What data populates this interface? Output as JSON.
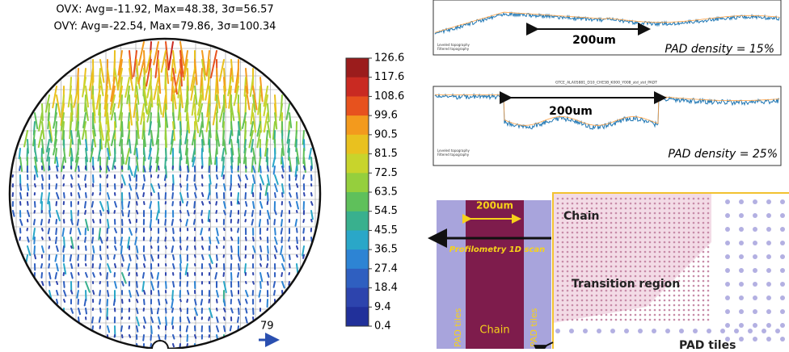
{
  "wafer_map": {
    "header": [
      "OVX: Avg=-11.92, Max=48.38, 3σ=56.57",
      "OVY: Avg=-22.54, Max=79.86, 3σ=100.34"
    ],
    "colorbar": {
      "ticks": [
        "126.6",
        "117.6",
        "108.6",
        "99.6",
        "90.5",
        "81.5",
        "72.5",
        "63.5",
        "54.5",
        "45.5",
        "36.5",
        "27.4",
        "18.4",
        "9.4",
        "0.4"
      ],
      "colors": [
        "#9b1c1c",
        "#c92a22",
        "#e7521e",
        "#f39a1d",
        "#e9c11f",
        "#c8d42c",
        "#95cf3d",
        "#5fc05b",
        "#39b08e",
        "#2aa7c8",
        "#2d84d4",
        "#2f5fc0",
        "#2d44ad",
        "#21309a"
      ]
    },
    "scale_label": "79"
  },
  "profile_1": {
    "legend": [
      "Leveled topography",
      "Filtered topography"
    ],
    "span_label": "200um",
    "density_label": "PAD density = 15%"
  },
  "profile_2": {
    "title": "GTCE_ALA05881_D10_CHE5B_K000_Y008_std_std_PADT",
    "legend": [
      "Leveled topography",
      "Filtered topography"
    ],
    "span_label": "200um",
    "density_label": "PAD density = 25%"
  },
  "layout_diagram": {
    "width_label": "200um",
    "scan_label": "Profilometry 1D scan",
    "left_tiles": "PAD tiles",
    "right_tiles": "PAD tiles",
    "column_label": "Chain",
    "chain_region": "Chain",
    "transition_region": "Transition region",
    "pad_region": "PAD tiles"
  }
}
